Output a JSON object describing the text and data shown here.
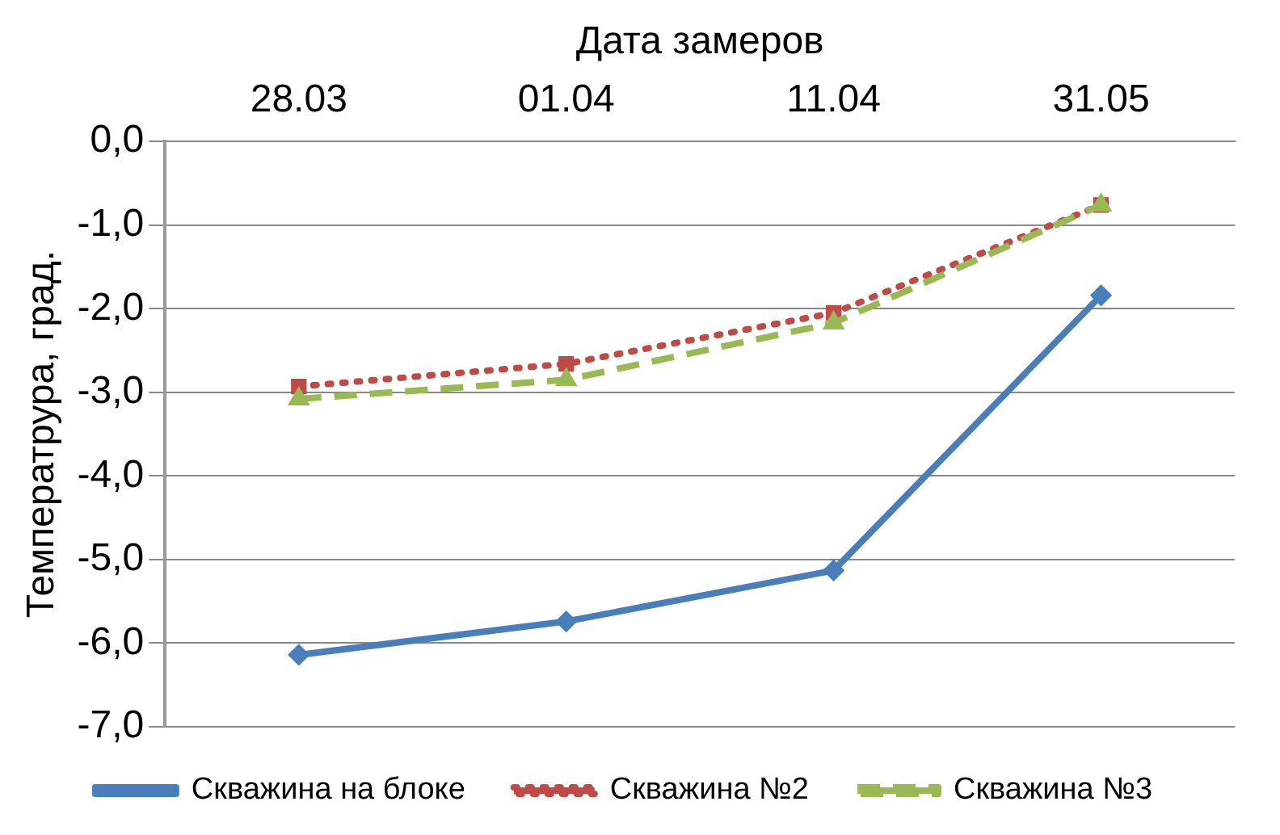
{
  "chart_data": {
    "type": "line",
    "xlabel": "Дата замеров",
    "ylabel": "Температрура, град.",
    "categories": [
      "28.03",
      "01.04",
      "11.04",
      "31.05"
    ],
    "series": [
      {
        "name": "Скважина на блоке",
        "color": "#4a7ebb",
        "values": [
          -6.14,
          -5.74,
          -5.13,
          -1.84
        ],
        "marker": "diamond",
        "line_style": "solid"
      },
      {
        "name": "Скважина №2",
        "color": "#be4b48",
        "values": [
          -2.93,
          -2.66,
          -2.05,
          -0.76
        ],
        "marker": "square",
        "line_style": "dotted"
      },
      {
        "name": "Скважина №3",
        "color": "#98b954",
        "values": [
          -3.08,
          -2.85,
          -2.17,
          -0.76
        ],
        "marker": "triangle",
        "line_style": "dashed"
      }
    ],
    "ylim": [
      -7,
      0
    ],
    "yticks": [
      {
        "value": 0,
        "label": "0,0"
      },
      {
        "value": -1,
        "label": "-1,0"
      },
      {
        "value": -2,
        "label": "-2,0"
      },
      {
        "value": -3,
        "label": "-3,0"
      },
      {
        "value": -4,
        "label": "-4,0"
      },
      {
        "value": -5,
        "label": "-5,0"
      },
      {
        "value": -6,
        "label": "-6,0"
      },
      {
        "value": -7,
        "label": "-7,0"
      }
    ],
    "grid": "y",
    "legend": "bottom"
  }
}
